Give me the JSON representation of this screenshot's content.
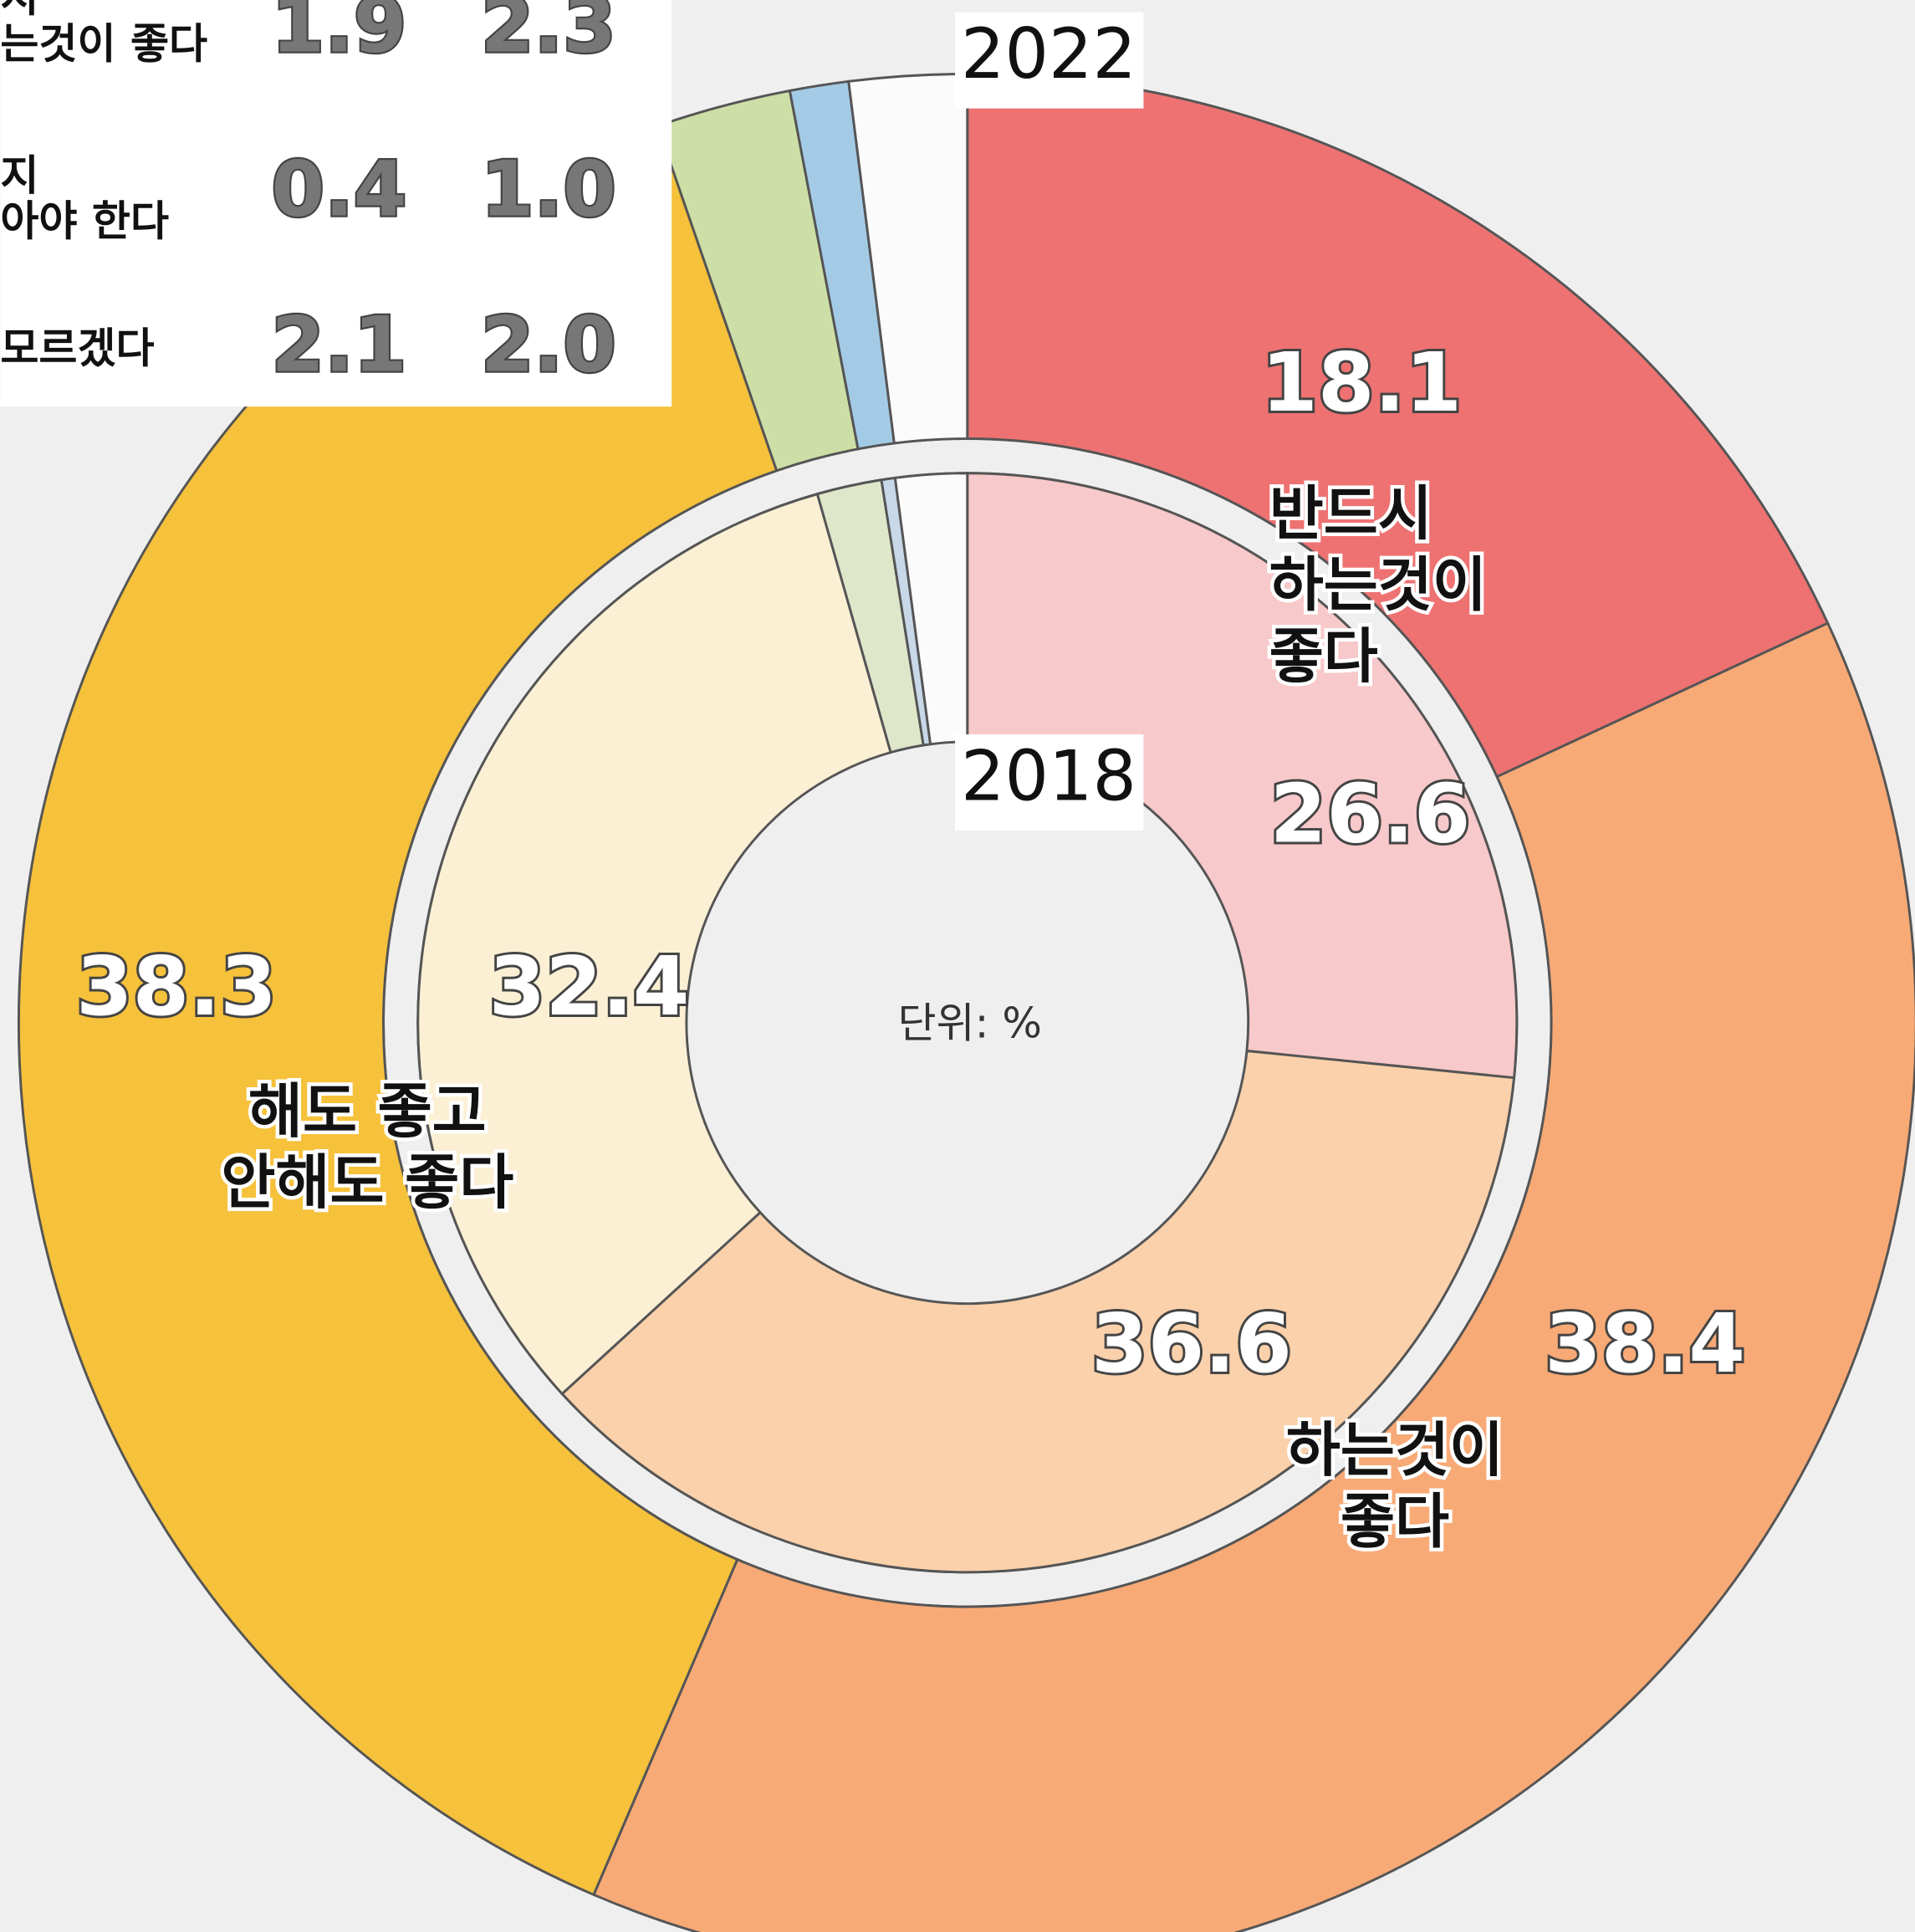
{
  "chart_data": {
    "type": "donut",
    "unit_label": "단위: %",
    "categories": [
      [
        "반드시",
        "하는것이",
        "좋다"
      ],
      [
        "하는것이",
        "좋다"
      ],
      [
        "해도 좋고",
        "안해도 좋다"
      ],
      [
        "지",
        "는것이 좋다"
      ],
      [
        "지",
        "아야 한다"
      ],
      [
        "모르겠다"
      ]
    ],
    "series": [
      {
        "name": "2018",
        "values": [
          26.6,
          36.6,
          32.4,
          1.9,
          0.4,
          2.1
        ],
        "value_labels": [
          "26.6",
          "36.6",
          "32.4",
          "1.9",
          "0.4",
          "2.1"
        ],
        "colors": [
          "#f8c9ca",
          "#fad1ab",
          "#fbf0d4",
          "#dfe7cb",
          "#c8d8e8",
          "#fbfbfb"
        ]
      },
      {
        "name": "2022",
        "values": [
          18.1,
          38.4,
          38.3,
          2.3,
          1.0,
          2.0
        ],
        "value_labels": [
          "18.1",
          "38.4",
          "38.3",
          "2.3",
          "1.0",
          "2.0"
        ],
        "colors": [
          "#ee7272",
          "#f8aa76",
          "#f6c13b",
          "#cddfa6",
          "#a4cbe6",
          "#fbfbfb"
        ]
      }
    ]
  }
}
